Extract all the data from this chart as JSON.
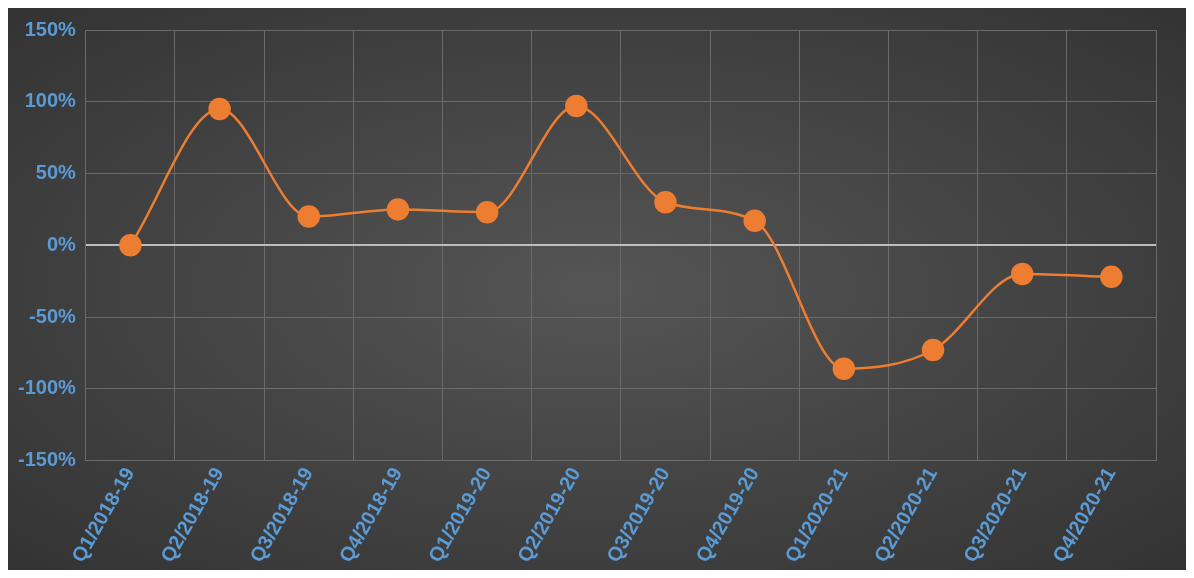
{
  "chart_data": {
    "type": "line",
    "categories": [
      "Q1/2018-19",
      "Q2/2018-19",
      "Q3/2018-19",
      "Q4/2018-19",
      "Q1/2019-20",
      "Q2/2019-20",
      "Q3/2019-20",
      "Q4/2019-20",
      "Q1/2020-21",
      "Q2/2020-21",
      "Q3/2020-21",
      "Q4/2020-21"
    ],
    "series": [
      {
        "color": "#ed7d31",
        "values": [
          0,
          95,
          20,
          25,
          23,
          97,
          30,
          17,
          -86,
          -73,
          -20,
          -22
        ]
      }
    ],
    "ylim": [
      -150,
      150
    ],
    "yticks": [
      {
        "value": -150,
        "label": "-150%"
      },
      {
        "value": -100,
        "label": "-100%"
      },
      {
        "value": -50,
        "label": "-50%"
      },
      {
        "value": 0,
        "label": "0%"
      },
      {
        "value": 50,
        "label": "50%"
      },
      {
        "value": 100,
        "label": "100%"
      },
      {
        "value": 150,
        "label": "150%"
      }
    ],
    "grid": true,
    "legend": false,
    "marker": "circle",
    "line_style": "solid"
  }
}
